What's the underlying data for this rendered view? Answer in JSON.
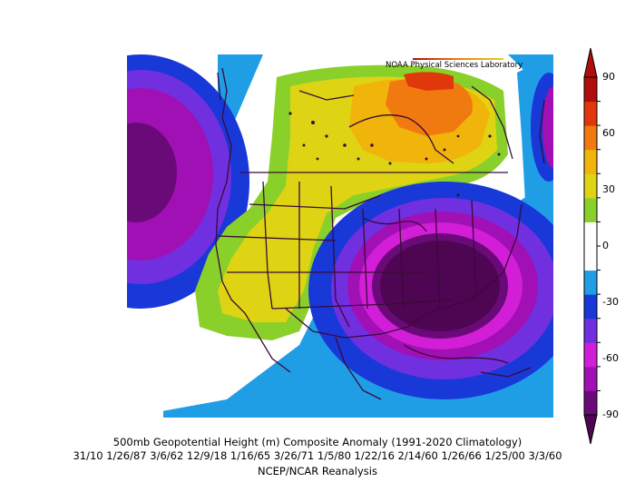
{
  "credit": "NOAA Physical Sciences Laboratory",
  "caption": {
    "title": "500mb Geopotential Height (m) Composite Anomaly (1991-2020 Climatology)",
    "dates": "31/10 1/26/87 3/6/62 12/9/18 1/16/65 3/26/71 1/5/80 1/22/16 2/14/60 1/26/66 1/25/00 3/3/60",
    "source": "NCEP/NCAR Reanalysis"
  },
  "colorbar": {
    "ticks": [
      "90",
      "60",
      "30",
      "0",
      "-30",
      "-60",
      "-90"
    ],
    "colors": [
      "#6a0a78",
      "#a010b4",
      "#d21ed7",
      "#7030e0",
      "#1838d8",
      "#1f9ee6",
      "#ffffff",
      "#ffffff",
      "#8ad02a",
      "#ded414",
      "#f0b40a",
      "#f07a10",
      "#e0380a",
      "#b00d0d"
    ]
  }
}
